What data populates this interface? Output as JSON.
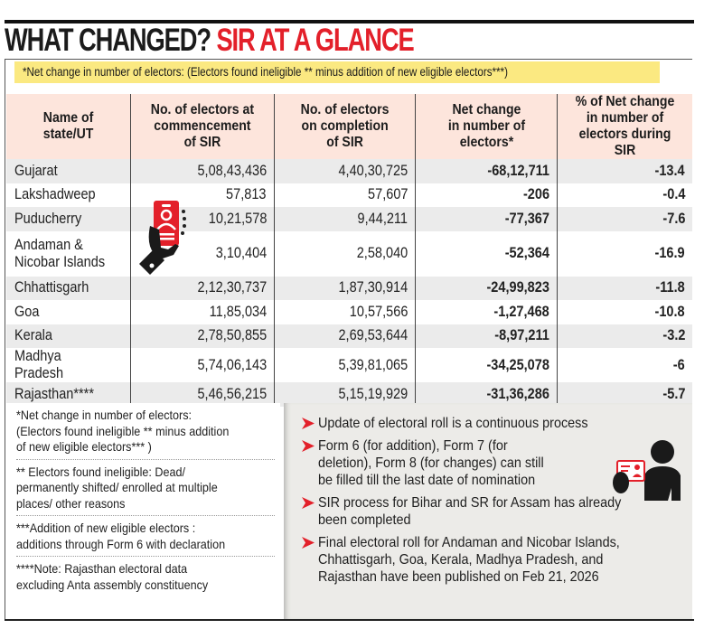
{
  "title": {
    "part1": "WHAT CHANGED?",
    "part2": "SIR AT A GLANCE"
  },
  "highlight_note": "*Net change in number of electors: (Electors found ineligible ** minus addition of new eligible electors***)",
  "table": {
    "headers": [
      [
        "Name of",
        "state/UT"
      ],
      [
        "No. of electors at",
        "commencement",
        "of SIR"
      ],
      [
        "No. of electors",
        "on completion",
        "of SIR"
      ],
      [
        "Net change",
        "in number of",
        "electors*"
      ],
      [
        "% of Net change",
        "in number of",
        "electors during SIR"
      ]
    ],
    "rows": [
      {
        "state": [
          "Gujarat"
        ],
        "commencement": "5,08,43,436",
        "completion": "4,40,30,725",
        "net_change": "-68,12,711",
        "pct": "-13.4"
      },
      {
        "state": [
          "Lakshadweep"
        ],
        "commencement": "57,813",
        "completion": "57,607",
        "net_change": "-206",
        "pct": "-0.4"
      },
      {
        "state": [
          "Puducherry"
        ],
        "commencement": "10,21,578",
        "completion": "9,44,211",
        "net_change": "-77,367",
        "pct": "-7.6"
      },
      {
        "state": [
          "Andaman &",
          "Nicobar Islands"
        ],
        "commencement": "3,10,404",
        "completion": "2,58,040",
        "net_change": "-52,364",
        "pct": "-16.9"
      },
      {
        "state": [
          "Chhattisgarh"
        ],
        "commencement": "2,12,30,737",
        "completion": "1,87,30,914",
        "net_change": "-24,99,823",
        "pct": "-11.8"
      },
      {
        "state": [
          "Goa"
        ],
        "commencement": "11,85,034",
        "completion": "10,57,566",
        "net_change": "-1,27,468",
        "pct": "-10.8"
      },
      {
        "state": [
          "Kerala"
        ],
        "commencement": "2,78,50,855",
        "completion": "2,69,53,644",
        "net_change": "-8,97,211",
        "pct": "-3.2"
      },
      {
        "state": [
          "Madhya Pradesh"
        ],
        "commencement": "5,74,06,143",
        "completion": "5,39,81,065",
        "net_change": "-34,25,078",
        "pct": "-6"
      },
      {
        "state": [
          "Rajasthan****"
        ],
        "commencement": "5,46,56,215",
        "completion": "5,15,19,929",
        "net_change": "-31,36,286",
        "pct": "-5.7"
      }
    ]
  },
  "footnotes": [
    [
      "*Net change in number of electors:",
      "(Electors found ineligible ** minus addition",
      "of new eligible electors*** )"
    ],
    [
      "** Electors found ineligible: Dead/",
      "permanently shifted/ enrolled at multiple",
      "places/ other reasons"
    ],
    [
      " ***Addition of new eligible electors :",
      "additions through Form 6 with declaration"
    ],
    [
      "****Note: Rajasthan electoral data",
      "excluding Anta assembly constituency"
    ]
  ],
  "bullets": [
    [
      "Update of electoral roll is a continuous process"
    ],
    [
      "Form 6 (for addition), Form 7 (for",
      "deletion), Form 8 (for changes) can still",
      "be filled till the last date of nomination"
    ],
    [
      "SIR process for Bihar and SR for Assam has already",
      "been completed"
    ],
    [
      "Final electoral roll for Andaman and Nicobar Islands,",
      "Chhattisgarh, Goa, Kerala, Madhya Pradesh, and",
      "Rajasthan have been published on Feb 21, 2026"
    ]
  ],
  "icons": {
    "hand": "hand-holding-voter-id-icon",
    "person": "person-showing-id-card-icon",
    "bullet": "red-arrow-icon"
  },
  "colors": {
    "accent_red": "#e3202a",
    "highlight_yellow": "#fbe981",
    "header_pink": "#fde5dc",
    "row_shade": "#ebebeb",
    "notes_grey": "#ecebe8"
  }
}
